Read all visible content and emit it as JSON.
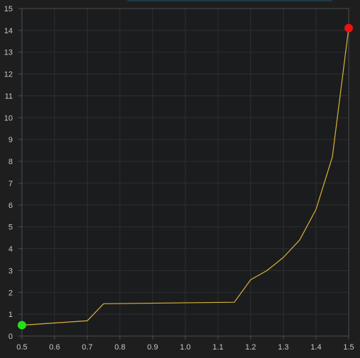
{
  "chart_data": {
    "type": "line",
    "title": "",
    "xlabel": "",
    "ylabel": "",
    "xlim": [
      0.5,
      1.5
    ],
    "ylim": [
      0,
      15
    ],
    "grid": true,
    "colors": {
      "background": "#1e1e1e",
      "plot_background": "#1b1c1d",
      "grid": "#2d2f31",
      "axis": "#4a4c4e",
      "line": "#d9b43a",
      "start_marker": "#22e01a",
      "end_marker": "#ee1111",
      "tick_text": "#c8c8c8",
      "top_strip": "#1d3a44"
    },
    "x_ticks": [
      0.5,
      0.6,
      0.7,
      0.8,
      0.9,
      1.0,
      1.1,
      1.2,
      1.3,
      1.4,
      1.5
    ],
    "x_tick_labels": [
      "0.5",
      "0.6",
      "0.7",
      "0.8",
      "0.9",
      "1.0",
      "1.1",
      "1.2",
      "1.3",
      "1.4",
      "1.5"
    ],
    "y_ticks": [
      0,
      1,
      2,
      3,
      4,
      5,
      6,
      7,
      8,
      9,
      10,
      11,
      12,
      13,
      14,
      15
    ],
    "y_tick_labels": [
      "0",
      "1",
      "2",
      "3",
      "4",
      "5",
      "6",
      "7",
      "8",
      "9",
      "10",
      "11",
      "12",
      "13",
      "14",
      "15"
    ],
    "series": [
      {
        "x": [
          0.5,
          0.7,
          0.75,
          1.15,
          1.2,
          1.25,
          1.3,
          1.35,
          1.4,
          1.45,
          1.5
        ],
        "y": [
          0.5,
          0.7,
          1.48,
          1.55,
          2.58,
          3.0,
          3.6,
          4.4,
          5.8,
          8.2,
          14.1
        ]
      }
    ],
    "markers": [
      {
        "x": 0.5,
        "y": 0.5,
        "color_key": "start_marker"
      },
      {
        "x": 1.5,
        "y": 14.1,
        "color_key": "end_marker"
      }
    ]
  }
}
